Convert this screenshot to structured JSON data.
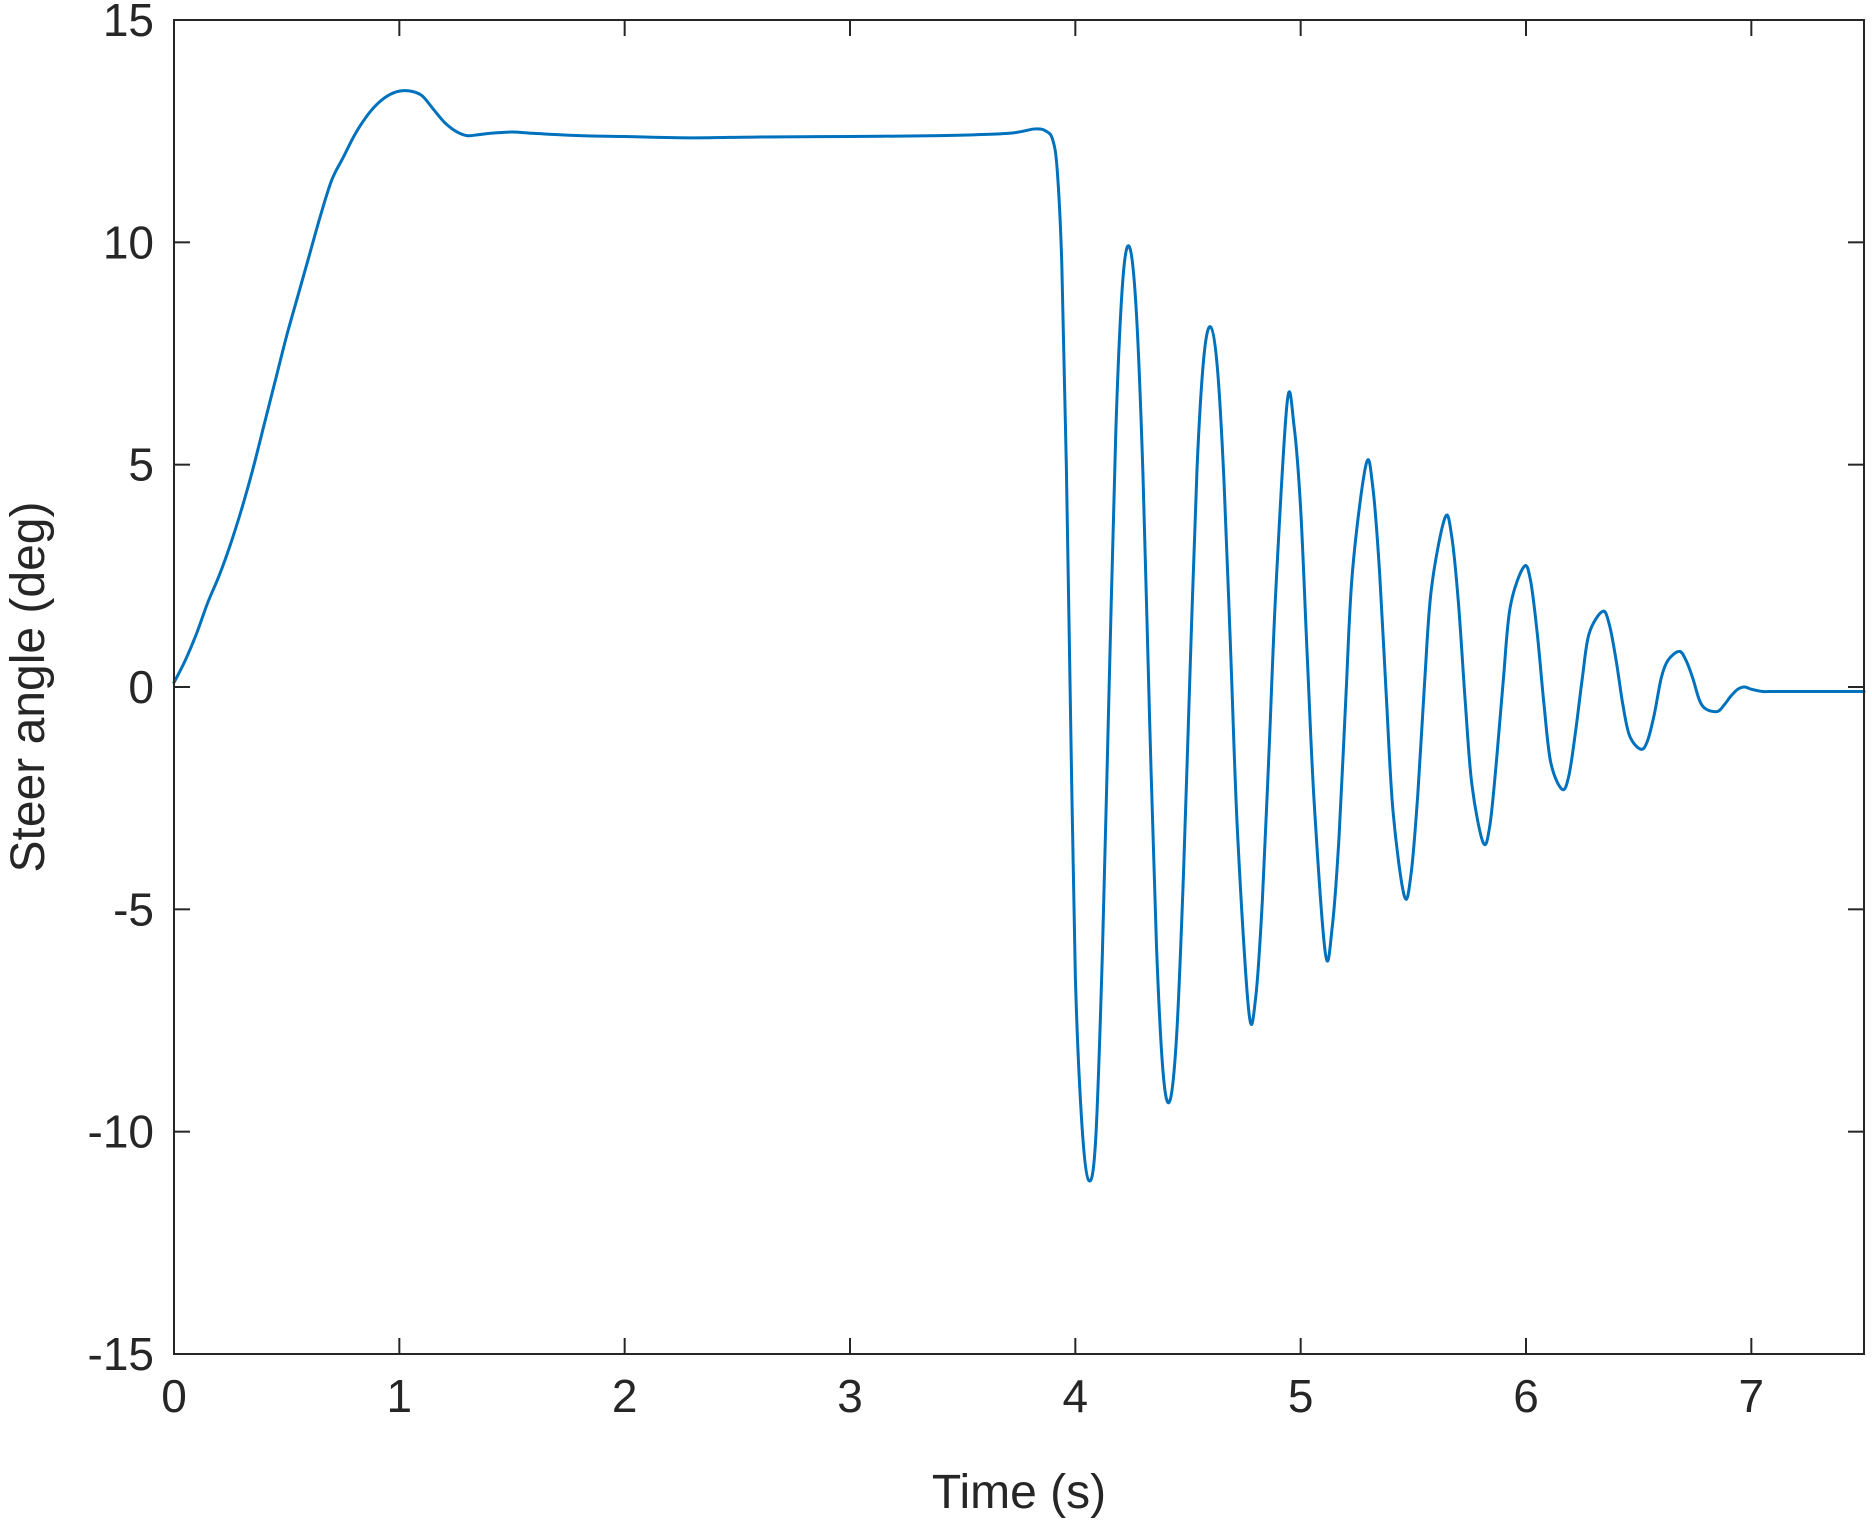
{
  "chart_data": {
    "type": "line",
    "xlabel": "Time (s)",
    "ylabel": "Steer angle (deg)",
    "xlim": [
      0,
      7.5
    ],
    "ylim": [
      -15,
      15
    ],
    "x_ticks": [
      "0",
      "1",
      "2",
      "3",
      "4",
      "5",
      "6",
      "7"
    ],
    "y_ticks": [
      "-15",
      "-10",
      "-5",
      "0",
      "5",
      "10",
      "15"
    ],
    "x_tick_values": [
      0,
      1,
      2,
      3,
      4,
      5,
      6,
      7
    ],
    "y_tick_values": [
      -15,
      -10,
      -5,
      0,
      5,
      10,
      15
    ],
    "grid": false,
    "line_color": "#0072BD",
    "series": [
      {
        "x": [
          0,
          0.05,
          0.1,
          0.15,
          0.2,
          0.25,
          0.3,
          0.35,
          0.4,
          0.45,
          0.5,
          0.55,
          0.6,
          0.65,
          0.7,
          0.75,
          0.8,
          0.85,
          0.9,
          0.95,
          1.0,
          1.05,
          1.1,
          1.15,
          1.2,
          1.25,
          1.3,
          1.35,
          1.4,
          1.5,
          1.6,
          1.8,
          2.0,
          2.3,
          2.6,
          3.0,
          3.4,
          3.7,
          3.82,
          3.87,
          3.9,
          3.92,
          3.94,
          3.96,
          3.98,
          4.0,
          4.03,
          4.06,
          4.09,
          4.12,
          4.15,
          4.18,
          4.21,
          4.24,
          4.27,
          4.3,
          4.33,
          4.36,
          4.39,
          4.42,
          4.45,
          4.48,
          4.51,
          4.54,
          4.57,
          4.6,
          4.63,
          4.66,
          4.69,
          4.72,
          4.77,
          4.8,
          4.83,
          4.86,
          4.89,
          4.94,
          4.97,
          5.0,
          5.03,
          5.06,
          5.11,
          5.14,
          5.17,
          5.2,
          5.23,
          5.29,
          5.32,
          5.35,
          5.38,
          5.41,
          5.46,
          5.49,
          5.52,
          5.55,
          5.58,
          5.64,
          5.67,
          5.7,
          5.73,
          5.76,
          5.81,
          5.84,
          5.87,
          5.9,
          5.93,
          5.99,
          6.02,
          6.05,
          6.08,
          6.11,
          6.16,
          6.19,
          6.22,
          6.25,
          6.28,
          6.34,
          6.37,
          6.4,
          6.43,
          6.46,
          6.51,
          6.54,
          6.57,
          6.6,
          6.63,
          6.68,
          6.71,
          6.74,
          6.77,
          6.8,
          6.85,
          6.88,
          6.91,
          6.94,
          6.97,
          7.0,
          7.05,
          7.1,
          7.2,
          7.3,
          7.4,
          7.5
        ],
        "values": [
          0.1,
          0.6,
          1.2,
          1.9,
          2.5,
          3.2,
          4.0,
          4.9,
          5.9,
          6.9,
          7.9,
          8.8,
          9.7,
          10.6,
          11.4,
          11.9,
          12.4,
          12.8,
          13.1,
          13.3,
          13.4,
          13.4,
          13.3,
          13.0,
          12.7,
          12.5,
          12.4,
          12.42,
          12.45,
          12.48,
          12.45,
          12.4,
          12.38,
          12.35,
          12.37,
          12.38,
          12.4,
          12.45,
          12.55,
          12.5,
          12.3,
          11.6,
          9.5,
          5.0,
          -1.0,
          -6.5,
          -9.9,
          -11.1,
          -10.2,
          -6.0,
          0.0,
          5.8,
          9.1,
          9.9,
          8.5,
          4.8,
          -0.8,
          -5.8,
          -8.7,
          -9.3,
          -7.8,
          -4.2,
          0.5,
          4.9,
          7.4,
          8.1,
          7.2,
          4.6,
          0.7,
          -3.3,
          -7.3,
          -7.0,
          -4.8,
          -1.4,
          2.2,
          6.4,
          5.9,
          4.0,
          0.6,
          -2.6,
          -6.0,
          -5.4,
          -3.4,
          -0.3,
          2.6,
          5.0,
          4.5,
          2.6,
          -0.2,
          -2.8,
          -4.7,
          -4.2,
          -2.4,
          0.1,
          2.2,
          3.8,
          3.4,
          1.9,
          -0.3,
          -2.2,
          -3.5,
          -3.1,
          -1.6,
          0.2,
          1.8,
          2.7,
          2.4,
          1.2,
          -0.4,
          -1.7,
          -2.3,
          -2.0,
          -1.0,
          0.2,
          1.2,
          1.7,
          1.4,
          0.6,
          -0.4,
          -1.1,
          -1.4,
          -1.2,
          -0.6,
          0.2,
          0.6,
          0.8,
          0.6,
          0.2,
          -0.3,
          -0.5,
          -0.55,
          -0.4,
          -0.2,
          -0.05,
          0.0,
          -0.05,
          -0.1,
          -0.1,
          -0.1,
          -0.1,
          -0.1,
          -0.1
        ]
      }
    ]
  }
}
